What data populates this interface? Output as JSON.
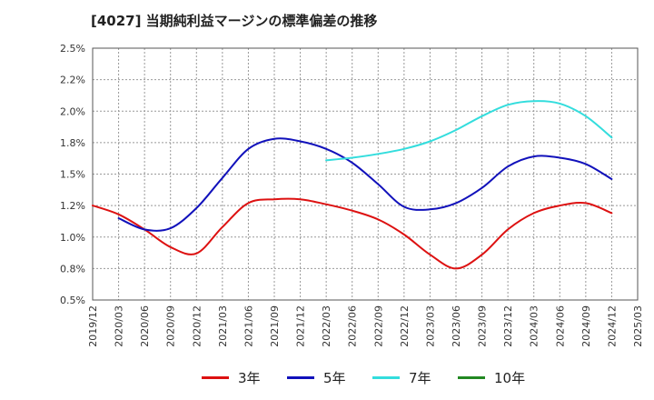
{
  "chart_data": {
    "type": "line",
    "title": "[4027]  当期純利益マージンの標準偏差の推移",
    "xlabel": "",
    "ylabel": "",
    "ylim": [
      0.5,
      2.5
    ],
    "yticks": [
      "2.5%",
      "2.2%",
      "2.0%",
      "1.8%",
      "1.5%",
      "1.2%",
      "1.0%",
      "0.8%",
      "0.5%"
    ],
    "ytick_values": [
      2.5,
      2.25,
      2.0,
      1.75,
      1.5,
      1.25,
      1.0,
      0.75,
      0.5
    ],
    "categories": [
      "2019/12",
      "2020/03",
      "2020/06",
      "2020/09",
      "2020/12",
      "2021/03",
      "2021/06",
      "2021/09",
      "2021/12",
      "2022/03",
      "2022/06",
      "2022/09",
      "2022/12",
      "2023/03",
      "2023/06",
      "2023/09",
      "2023/12",
      "2024/03",
      "2024/06",
      "2024/09",
      "2024/12",
      "2025/03"
    ],
    "grid": true,
    "legend_position": "bottom",
    "series": [
      {
        "name": "3年",
        "color": "#dd1111",
        "values": [
          1.25,
          1.18,
          1.06,
          0.92,
          0.87,
          1.08,
          1.27,
          1.3,
          1.3,
          1.26,
          1.21,
          1.14,
          1.02,
          0.86,
          0.75,
          0.86,
          1.06,
          1.19,
          1.25,
          1.27,
          1.19,
          null
        ]
      },
      {
        "name": "5年",
        "color": "#1111bb",
        "values": [
          null,
          1.15,
          1.06,
          1.07,
          1.23,
          1.47,
          1.7,
          1.78,
          1.76,
          1.7,
          1.59,
          1.42,
          1.24,
          1.22,
          1.27,
          1.39,
          1.56,
          1.64,
          1.63,
          1.58,
          1.46,
          null
        ]
      },
      {
        "name": "7年",
        "color": "#33dddd",
        "values": [
          null,
          null,
          null,
          null,
          null,
          null,
          null,
          null,
          null,
          1.61,
          1.63,
          1.66,
          1.7,
          1.76,
          1.85,
          1.96,
          2.05,
          2.08,
          2.06,
          1.96,
          1.79,
          null
        ]
      },
      {
        "name": "10年",
        "color": "#228822",
        "values": [
          null,
          null,
          null,
          null,
          null,
          null,
          null,
          null,
          null,
          null,
          null,
          null,
          null,
          null,
          null,
          null,
          null,
          null,
          null,
          null,
          null,
          null
        ]
      }
    ]
  }
}
